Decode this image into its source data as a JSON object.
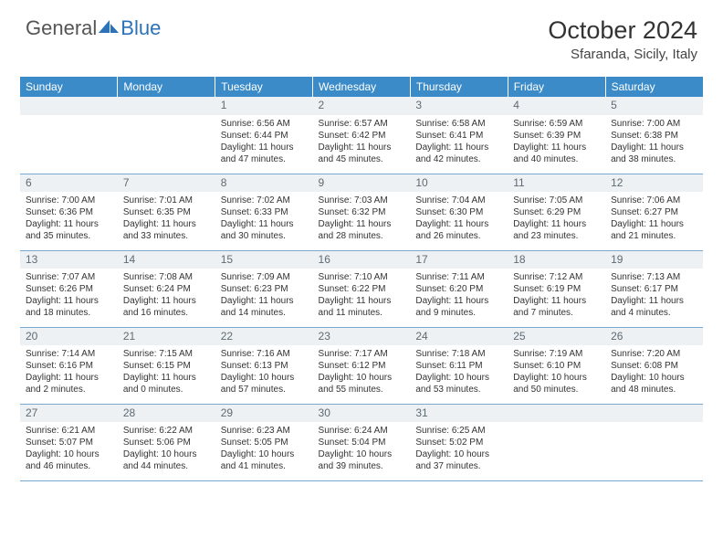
{
  "logo": {
    "word1": "General",
    "word2": "Blue"
  },
  "title": "October 2024",
  "location": "Sfaranda, Sicily, Italy",
  "colors": {
    "header_bg": "#3b8bc9",
    "header_text": "#ffffff",
    "daynum_bg": "#eef1f3",
    "daynum_text": "#5e6a74",
    "row_border": "#7aa9cf",
    "logo_blue": "#2b72b8"
  },
  "dayHeaders": [
    "Sunday",
    "Monday",
    "Tuesday",
    "Wednesday",
    "Thursday",
    "Friday",
    "Saturday"
  ],
  "weeks": [
    [
      null,
      null,
      {
        "n": "1",
        "sr": "6:56 AM",
        "ss": "6:44 PM",
        "dl": "11 hours and 47 minutes."
      },
      {
        "n": "2",
        "sr": "6:57 AM",
        "ss": "6:42 PM",
        "dl": "11 hours and 45 minutes."
      },
      {
        "n": "3",
        "sr": "6:58 AM",
        "ss": "6:41 PM",
        "dl": "11 hours and 42 minutes."
      },
      {
        "n": "4",
        "sr": "6:59 AM",
        "ss": "6:39 PM",
        "dl": "11 hours and 40 minutes."
      },
      {
        "n": "5",
        "sr": "7:00 AM",
        "ss": "6:38 PM",
        "dl": "11 hours and 38 minutes."
      }
    ],
    [
      {
        "n": "6",
        "sr": "7:00 AM",
        "ss": "6:36 PM",
        "dl": "11 hours and 35 minutes."
      },
      {
        "n": "7",
        "sr": "7:01 AM",
        "ss": "6:35 PM",
        "dl": "11 hours and 33 minutes."
      },
      {
        "n": "8",
        "sr": "7:02 AM",
        "ss": "6:33 PM",
        "dl": "11 hours and 30 minutes."
      },
      {
        "n": "9",
        "sr": "7:03 AM",
        "ss": "6:32 PM",
        "dl": "11 hours and 28 minutes."
      },
      {
        "n": "10",
        "sr": "7:04 AM",
        "ss": "6:30 PM",
        "dl": "11 hours and 26 minutes."
      },
      {
        "n": "11",
        "sr": "7:05 AM",
        "ss": "6:29 PM",
        "dl": "11 hours and 23 minutes."
      },
      {
        "n": "12",
        "sr": "7:06 AM",
        "ss": "6:27 PM",
        "dl": "11 hours and 21 minutes."
      }
    ],
    [
      {
        "n": "13",
        "sr": "7:07 AM",
        "ss": "6:26 PM",
        "dl": "11 hours and 18 minutes."
      },
      {
        "n": "14",
        "sr": "7:08 AM",
        "ss": "6:24 PM",
        "dl": "11 hours and 16 minutes."
      },
      {
        "n": "15",
        "sr": "7:09 AM",
        "ss": "6:23 PM",
        "dl": "11 hours and 14 minutes."
      },
      {
        "n": "16",
        "sr": "7:10 AM",
        "ss": "6:22 PM",
        "dl": "11 hours and 11 minutes."
      },
      {
        "n": "17",
        "sr": "7:11 AM",
        "ss": "6:20 PM",
        "dl": "11 hours and 9 minutes."
      },
      {
        "n": "18",
        "sr": "7:12 AM",
        "ss": "6:19 PM",
        "dl": "11 hours and 7 minutes."
      },
      {
        "n": "19",
        "sr": "7:13 AM",
        "ss": "6:17 PM",
        "dl": "11 hours and 4 minutes."
      }
    ],
    [
      {
        "n": "20",
        "sr": "7:14 AM",
        "ss": "6:16 PM",
        "dl": "11 hours and 2 minutes."
      },
      {
        "n": "21",
        "sr": "7:15 AM",
        "ss": "6:15 PM",
        "dl": "11 hours and 0 minutes."
      },
      {
        "n": "22",
        "sr": "7:16 AM",
        "ss": "6:13 PM",
        "dl": "10 hours and 57 minutes."
      },
      {
        "n": "23",
        "sr": "7:17 AM",
        "ss": "6:12 PM",
        "dl": "10 hours and 55 minutes."
      },
      {
        "n": "24",
        "sr": "7:18 AM",
        "ss": "6:11 PM",
        "dl": "10 hours and 53 minutes."
      },
      {
        "n": "25",
        "sr": "7:19 AM",
        "ss": "6:10 PM",
        "dl": "10 hours and 50 minutes."
      },
      {
        "n": "26",
        "sr": "7:20 AM",
        "ss": "6:08 PM",
        "dl": "10 hours and 48 minutes."
      }
    ],
    [
      {
        "n": "27",
        "sr": "6:21 AM",
        "ss": "5:07 PM",
        "dl": "10 hours and 46 minutes."
      },
      {
        "n": "28",
        "sr": "6:22 AM",
        "ss": "5:06 PM",
        "dl": "10 hours and 44 minutes."
      },
      {
        "n": "29",
        "sr": "6:23 AM",
        "ss": "5:05 PM",
        "dl": "10 hours and 41 minutes."
      },
      {
        "n": "30",
        "sr": "6:24 AM",
        "ss": "5:04 PM",
        "dl": "10 hours and 39 minutes."
      },
      {
        "n": "31",
        "sr": "6:25 AM",
        "ss": "5:02 PM",
        "dl": "10 hours and 37 minutes."
      },
      null,
      null
    ]
  ],
  "labels": {
    "sunrise": "Sunrise:",
    "sunset": "Sunset:",
    "daylight": "Daylight:"
  }
}
